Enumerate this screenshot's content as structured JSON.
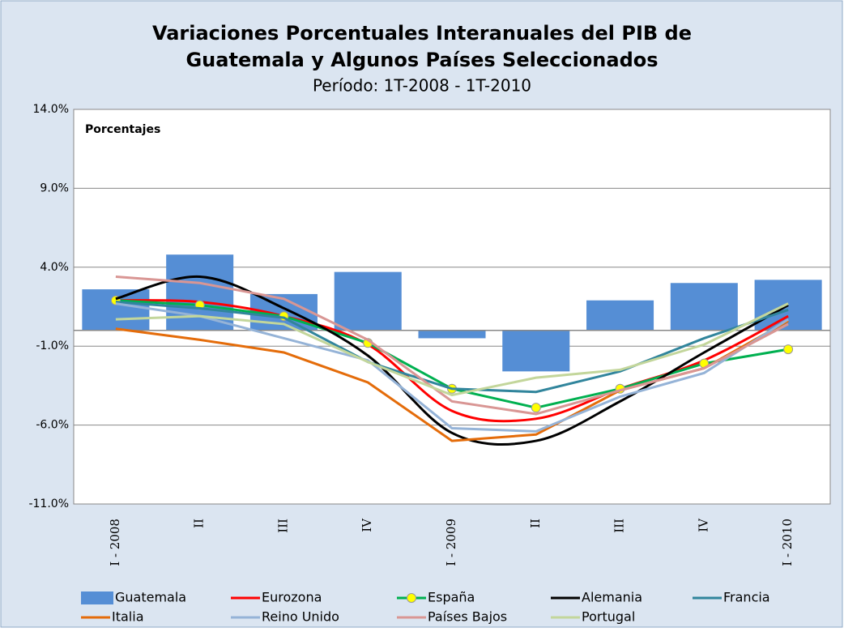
{
  "chart_data": {
    "type": "bar-line",
    "title": [
      "Variaciones Porcentuales Interanuales del PIB de",
      "Guatemala y Algunos Países Seleccionados"
    ],
    "subtitle": "Período: 1T-2008  -  1T-2010",
    "annotation": "Porcentajes",
    "categories": [
      "I - 2008",
      "II",
      "III",
      "IV",
      "I - 2009",
      "II",
      "III",
      "IV",
      "I - 2010"
    ],
    "ylim": [
      -11,
      14
    ],
    "yticks": [
      {
        "value": 14,
        "label": "14.0%"
      },
      {
        "value": 9,
        "label": "9.0%"
      },
      {
        "value": 4,
        "label": "4.0%"
      },
      {
        "value": -1,
        "label": "-1.0%"
      },
      {
        "value": -6,
        "label": "-6.0%"
      },
      {
        "value": -11,
        "label": "-11.0%"
      }
    ],
    "grid": true,
    "series": [
      {
        "name": "Guatemala",
        "type": "bar",
        "color": "#558ed5",
        "values": [
          2.6,
          4.8,
          2.3,
          3.7,
          -0.5,
          -2.6,
          1.9,
          3.0,
          3.2
        ]
      },
      {
        "name": "Eurozona",
        "type": "line",
        "smooth": true,
        "color": "#ff0000",
        "values": [
          1.9,
          1.8,
          0.9,
          -0.9,
          -5.1,
          -5.6,
          -3.7,
          -1.9,
          0.9
        ]
      },
      {
        "name": "España",
        "type": "line",
        "smooth": false,
        "color": "#00b050",
        "marker_color": "#ffff00",
        "values": [
          1.9,
          1.6,
          0.9,
          -0.8,
          -3.7,
          -4.9,
          -3.7,
          -2.1,
          -1.2
        ]
      },
      {
        "name": "Alemania",
        "type": "line",
        "smooth": true,
        "color": "#000000",
        "values": [
          2.0,
          3.4,
          1.4,
          -1.6,
          -6.5,
          -7.0,
          -4.5,
          -1.4,
          1.6
        ]
      },
      {
        "name": "Francia",
        "type": "line",
        "smooth": false,
        "color": "#31859c",
        "values": [
          1.8,
          1.4,
          0.8,
          -2.0,
          -3.7,
          -3.9,
          -2.6,
          -0.5,
          1.3
        ]
      },
      {
        "name": "Italia",
        "type": "line",
        "smooth": false,
        "color": "#e46c0a",
        "values": [
          0.1,
          -0.6,
          -1.4,
          -3.3,
          -7.0,
          -6.6,
          -3.8,
          -2.4,
          0.6
        ]
      },
      {
        "name": "Reino Unido",
        "type": "line",
        "smooth": false,
        "color": "#95b3d7",
        "values": [
          1.7,
          0.9,
          -0.5,
          -1.9,
          -6.2,
          -6.4,
          -4.2,
          -2.7,
          0.7
        ]
      },
      {
        "name": "Países Bajos",
        "type": "line",
        "smooth": false,
        "color": "#d99694",
        "values": [
          3.4,
          3.0,
          2.0,
          -0.6,
          -4.5,
          -5.3,
          -3.8,
          -2.4,
          0.4
        ]
      },
      {
        "name": "Portugal",
        "type": "line",
        "smooth": false,
        "color": "#c3d69b",
        "values": [
          0.7,
          0.9,
          0.4,
          -2.0,
          -4.1,
          -3.0,
          -2.5,
          -0.9,
          1.7
        ]
      }
    ]
  }
}
